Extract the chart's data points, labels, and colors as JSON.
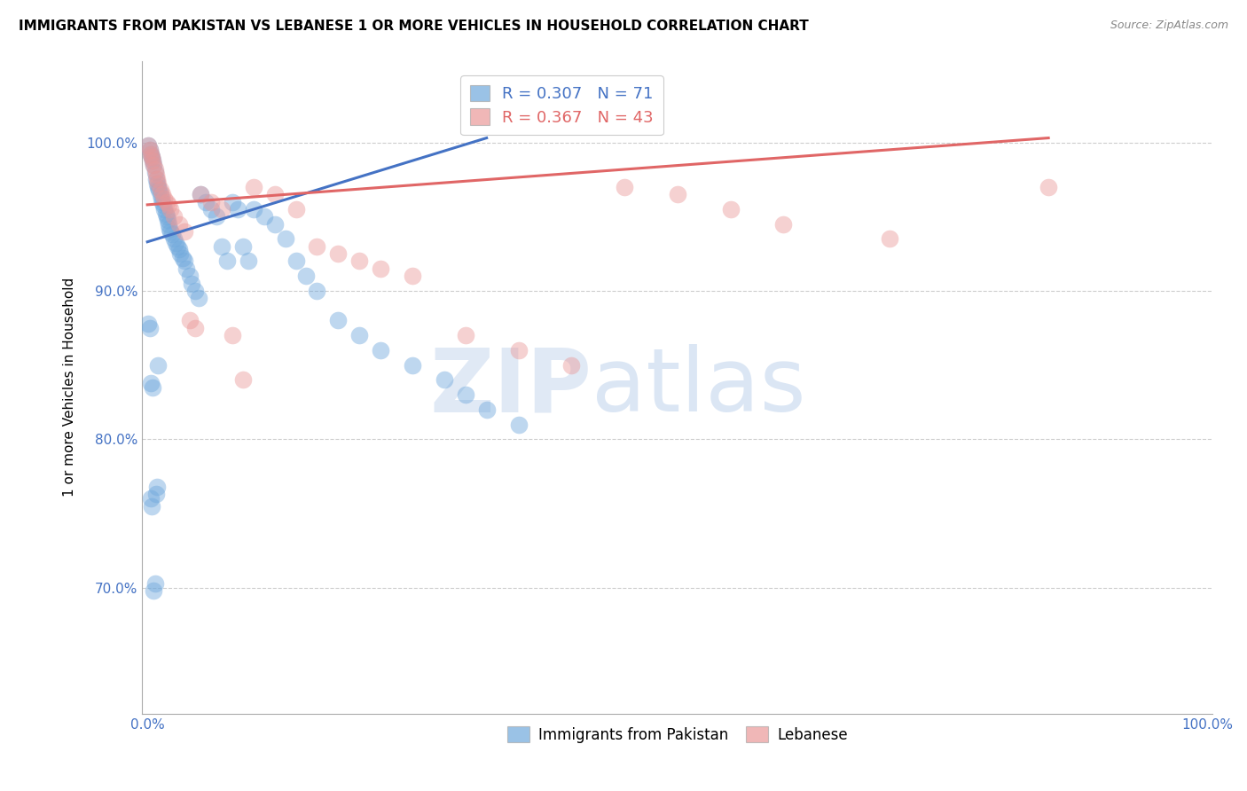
{
  "title": "IMMIGRANTS FROM PAKISTAN VS LEBANESE 1 OR MORE VEHICLES IN HOUSEHOLD CORRELATION CHART",
  "source": "Source: ZipAtlas.com",
  "ylabel": "1 or more Vehicles in Household",
  "xlim": [
    -0.005,
    1.005
  ],
  "ylim": [
    0.615,
    1.055
  ],
  "x_ticks": [
    0.0,
    0.1,
    0.2,
    0.3,
    0.4,
    0.5,
    0.6,
    0.7,
    0.8,
    0.9,
    1.0
  ],
  "x_tick_labels": [
    "0.0%",
    "",
    "",
    "",
    "",
    "",
    "",
    "",
    "",
    "",
    "100.0%"
  ],
  "y_ticks": [
    0.7,
    0.8,
    0.9,
    1.0
  ],
  "y_tick_labels": [
    "70.0%",
    "80.0%",
    "90.0%",
    "100.0%"
  ],
  "pakistan_color": "#6fa8dc",
  "lebanese_color": "#ea9999",
  "pakistan_R": 0.307,
  "pakistan_N": 71,
  "lebanese_R": 0.367,
  "lebanese_N": 43,
  "pakistan_line_color": "#4472c4",
  "lebanese_line_color": "#e06666",
  "pakistan_line_x0": 0.0,
  "pakistan_line_y0": 0.933,
  "pakistan_line_x1": 0.32,
  "pakistan_line_y1": 1.003,
  "lebanese_line_x0": 0.0,
  "lebanese_line_y0": 0.958,
  "lebanese_line_x1": 0.85,
  "lebanese_line_y1": 1.003,
  "pak_x": [
    0.001,
    0.002,
    0.003,
    0.004,
    0.005,
    0.006,
    0.007,
    0.008,
    0.009,
    0.01,
    0.011,
    0.012,
    0.013,
    0.014,
    0.015,
    0.016,
    0.017,
    0.018,
    0.019,
    0.02,
    0.021,
    0.022,
    0.023,
    0.025,
    0.027,
    0.028,
    0.03,
    0.031,
    0.033,
    0.035,
    0.037,
    0.04,
    0.042,
    0.045,
    0.048,
    0.05,
    0.055,
    0.06,
    0.065,
    0.07,
    0.075,
    0.08,
    0.085,
    0.09,
    0.095,
    0.1,
    0.11,
    0.12,
    0.13,
    0.14,
    0.15,
    0.16,
    0.18,
    0.2,
    0.22,
    0.25,
    0.28,
    0.3,
    0.32,
    0.35,
    0.001,
    0.002,
    0.003,
    0.003,
    0.004,
    0.005,
    0.006,
    0.007,
    0.008,
    0.009,
    0.01
  ],
  "pak_y": [
    0.998,
    0.995,
    0.992,
    0.99,
    0.988,
    0.985,
    0.98,
    0.975,
    0.972,
    0.97,
    0.968,
    0.965,
    0.962,
    0.96,
    0.958,
    0.955,
    0.952,
    0.95,
    0.948,
    0.945,
    0.942,
    0.94,
    0.938,
    0.935,
    0.932,
    0.93,
    0.928,
    0.925,
    0.922,
    0.92,
    0.915,
    0.91,
    0.905,
    0.9,
    0.895,
    0.965,
    0.96,
    0.955,
    0.95,
    0.93,
    0.92,
    0.96,
    0.955,
    0.93,
    0.92,
    0.955,
    0.95,
    0.945,
    0.935,
    0.92,
    0.91,
    0.9,
    0.88,
    0.87,
    0.86,
    0.85,
    0.84,
    0.83,
    0.82,
    0.81,
    0.878,
    0.875,
    0.838,
    0.76,
    0.755,
    0.835,
    0.698,
    0.703,
    0.763,
    0.768,
    0.85
  ],
  "leb_x": [
    0.001,
    0.002,
    0.003,
    0.004,
    0.005,
    0.006,
    0.007,
    0.008,
    0.009,
    0.01,
    0.012,
    0.014,
    0.016,
    0.018,
    0.02,
    0.022,
    0.025,
    0.03,
    0.035,
    0.04,
    0.045,
    0.05,
    0.06,
    0.07,
    0.08,
    0.09,
    0.1,
    0.12,
    0.14,
    0.16,
    0.18,
    0.2,
    0.22,
    0.25,
    0.3,
    0.35,
    0.4,
    0.45,
    0.5,
    0.55,
    0.6,
    0.7,
    0.85
  ],
  "leb_y": [
    0.998,
    0.995,
    0.992,
    0.99,
    0.988,
    0.985,
    0.982,
    0.978,
    0.975,
    0.972,
    0.968,
    0.965,
    0.962,
    0.96,
    0.958,
    0.955,
    0.95,
    0.945,
    0.94,
    0.88,
    0.875,
    0.965,
    0.96,
    0.955,
    0.87,
    0.84,
    0.97,
    0.965,
    0.955,
    0.93,
    0.925,
    0.92,
    0.915,
    0.91,
    0.87,
    0.86,
    0.85,
    0.97,
    0.965,
    0.955,
    0.945,
    0.935,
    0.97
  ]
}
